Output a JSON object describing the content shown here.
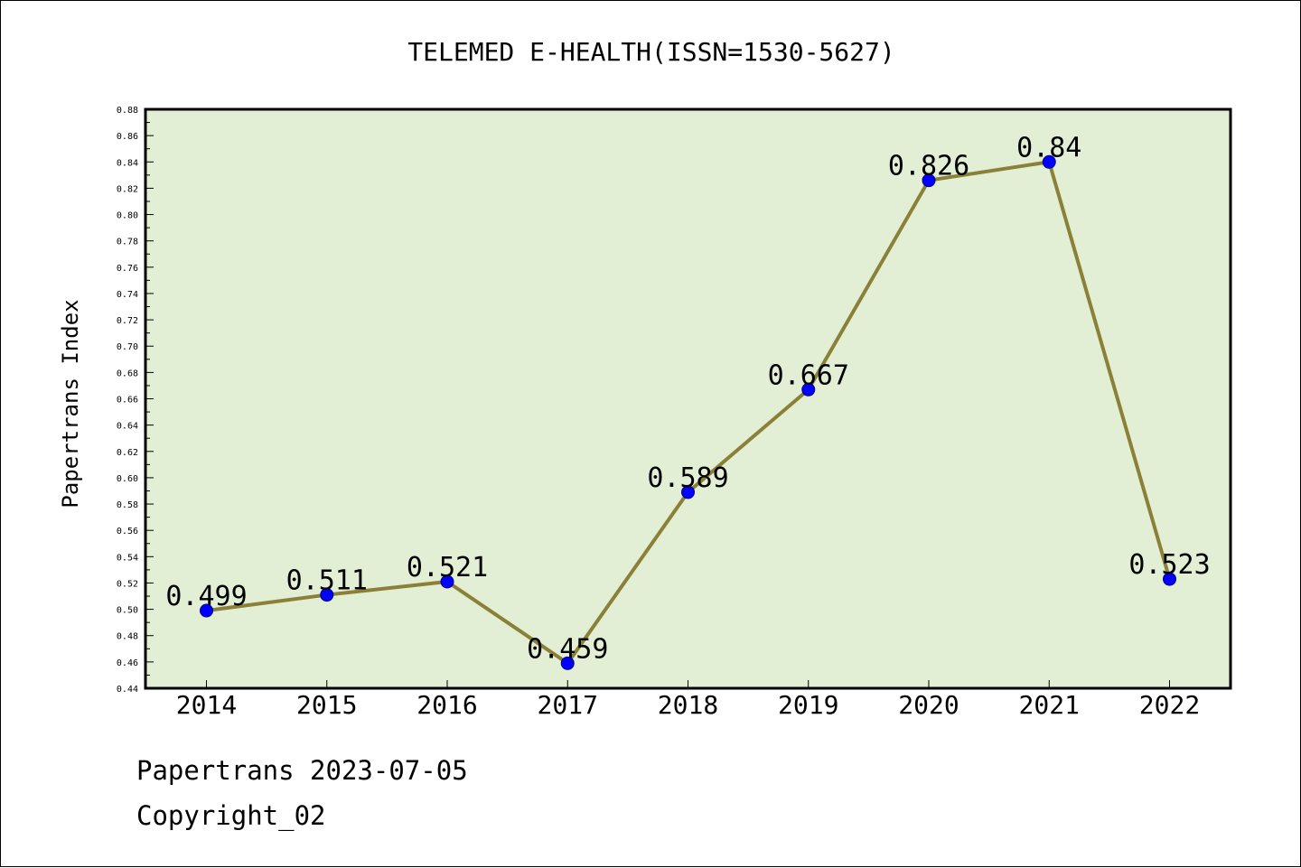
{
  "chart_data": {
    "type": "line",
    "title": "TELEMED E-HEALTH(ISSN=1530-5627)",
    "xlabel": "",
    "ylabel": "Papertrans Index",
    "categories": [
      "2014",
      "2015",
      "2016",
      "2017",
      "2018",
      "2019",
      "2020",
      "2021",
      "2022"
    ],
    "series": [
      {
        "values": [
          0.499,
          0.511,
          0.521,
          0.459,
          0.589,
          0.667,
          0.826,
          0.84,
          0.523
        ],
        "data_labels": [
          "0.499",
          "0.511",
          "0.521",
          "0.459",
          "0.589",
          "0.667",
          "0.826",
          "0.84",
          "0.523"
        ]
      }
    ],
    "ylim": [
      0.44,
      0.88
    ],
    "yticks": [
      "0.44",
      "0.46",
      "0.48",
      "0.50",
      "0.52",
      "0.54",
      "0.56",
      "0.58",
      "0.60",
      "0.62",
      "0.64",
      "0.66",
      "0.68",
      "0.70",
      "0.72",
      "0.74",
      "0.76",
      "0.78",
      "0.80",
      "0.82",
      "0.84",
      "0.86",
      "0.88"
    ],
    "grid": false,
    "legend": "none",
    "colors": {
      "plot_background": "#e2efd5",
      "line": "#8b8038",
      "marker": "#0000ff"
    }
  },
  "footer": {
    "source": "Papertrans 2023-07-05",
    "copyright": "Copyright_02"
  }
}
